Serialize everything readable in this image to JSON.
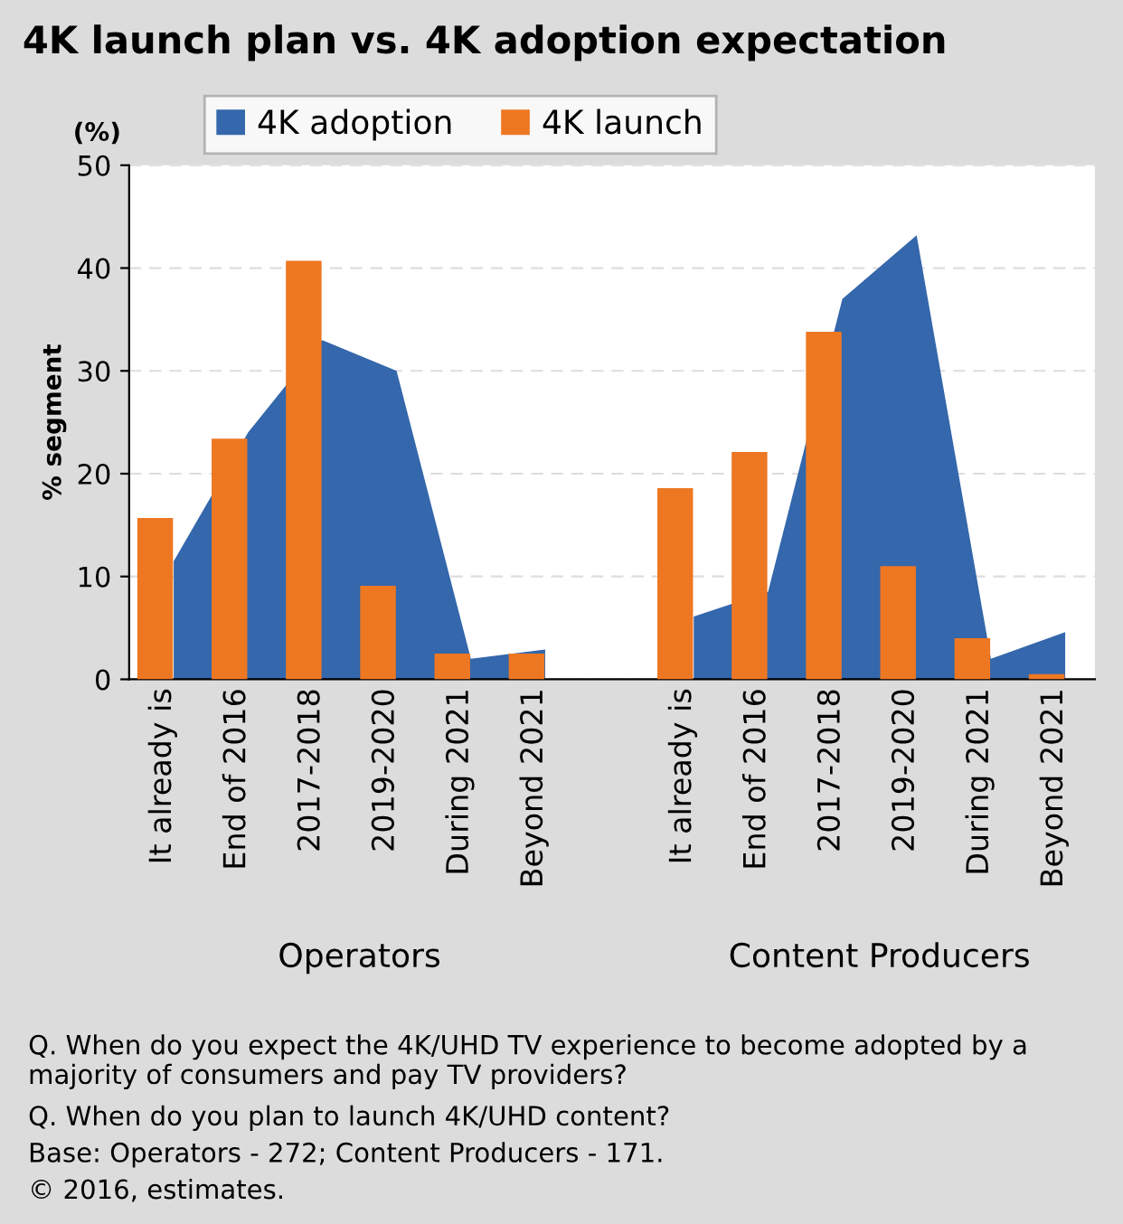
{
  "chart_data": {
    "type": "bar",
    "title": "4K launch plan vs. 4K adoption expectation",
    "ylabel": "% segment",
    "categories": [
      "It already is",
      "End of 2016",
      "2017-2018",
      "2019-2020",
      "During 2021",
      "Beyond 2021",
      null,
      "It already is",
      "End of 2016",
      "2017-2018",
      "2019-2020",
      "During 2021",
      "Beyond 2021"
    ],
    "series": [
      {
        "name": "4K adoption",
        "type": "area",
        "color": "#3467ab",
        "values": [
          11.5,
          24,
          33,
          30,
          2,
          2.9,
          null,
          6.1,
          8.5,
          37,
          43.2,
          2,
          4.6
        ]
      },
      {
        "name": "4K launch",
        "color": "#ee7722",
        "values": [
          15.7,
          23.4,
          40.7,
          9.1,
          2.5,
          2.5,
          null,
          18.6,
          22.1,
          33.8,
          11,
          4,
          0.5
        ]
      }
    ],
    "ylim": [
      0,
      50
    ],
    "yticks": [
      0,
      10,
      20,
      30,
      40,
      50
    ],
    "grid": "y",
    "legend": "top",
    "annotations": [
      "(%)",
      "Operators",
      "Content Producers",
      "Q. When do you expect the 4K/UHD TV experience to become adopted by a majority of consumers and pay TV providers?",
      "Q. When do you plan to launch 4K/UHD content?",
      "Base: Operators - 272; Content Producers - 171.",
      "© 2016, estimates."
    ]
  }
}
